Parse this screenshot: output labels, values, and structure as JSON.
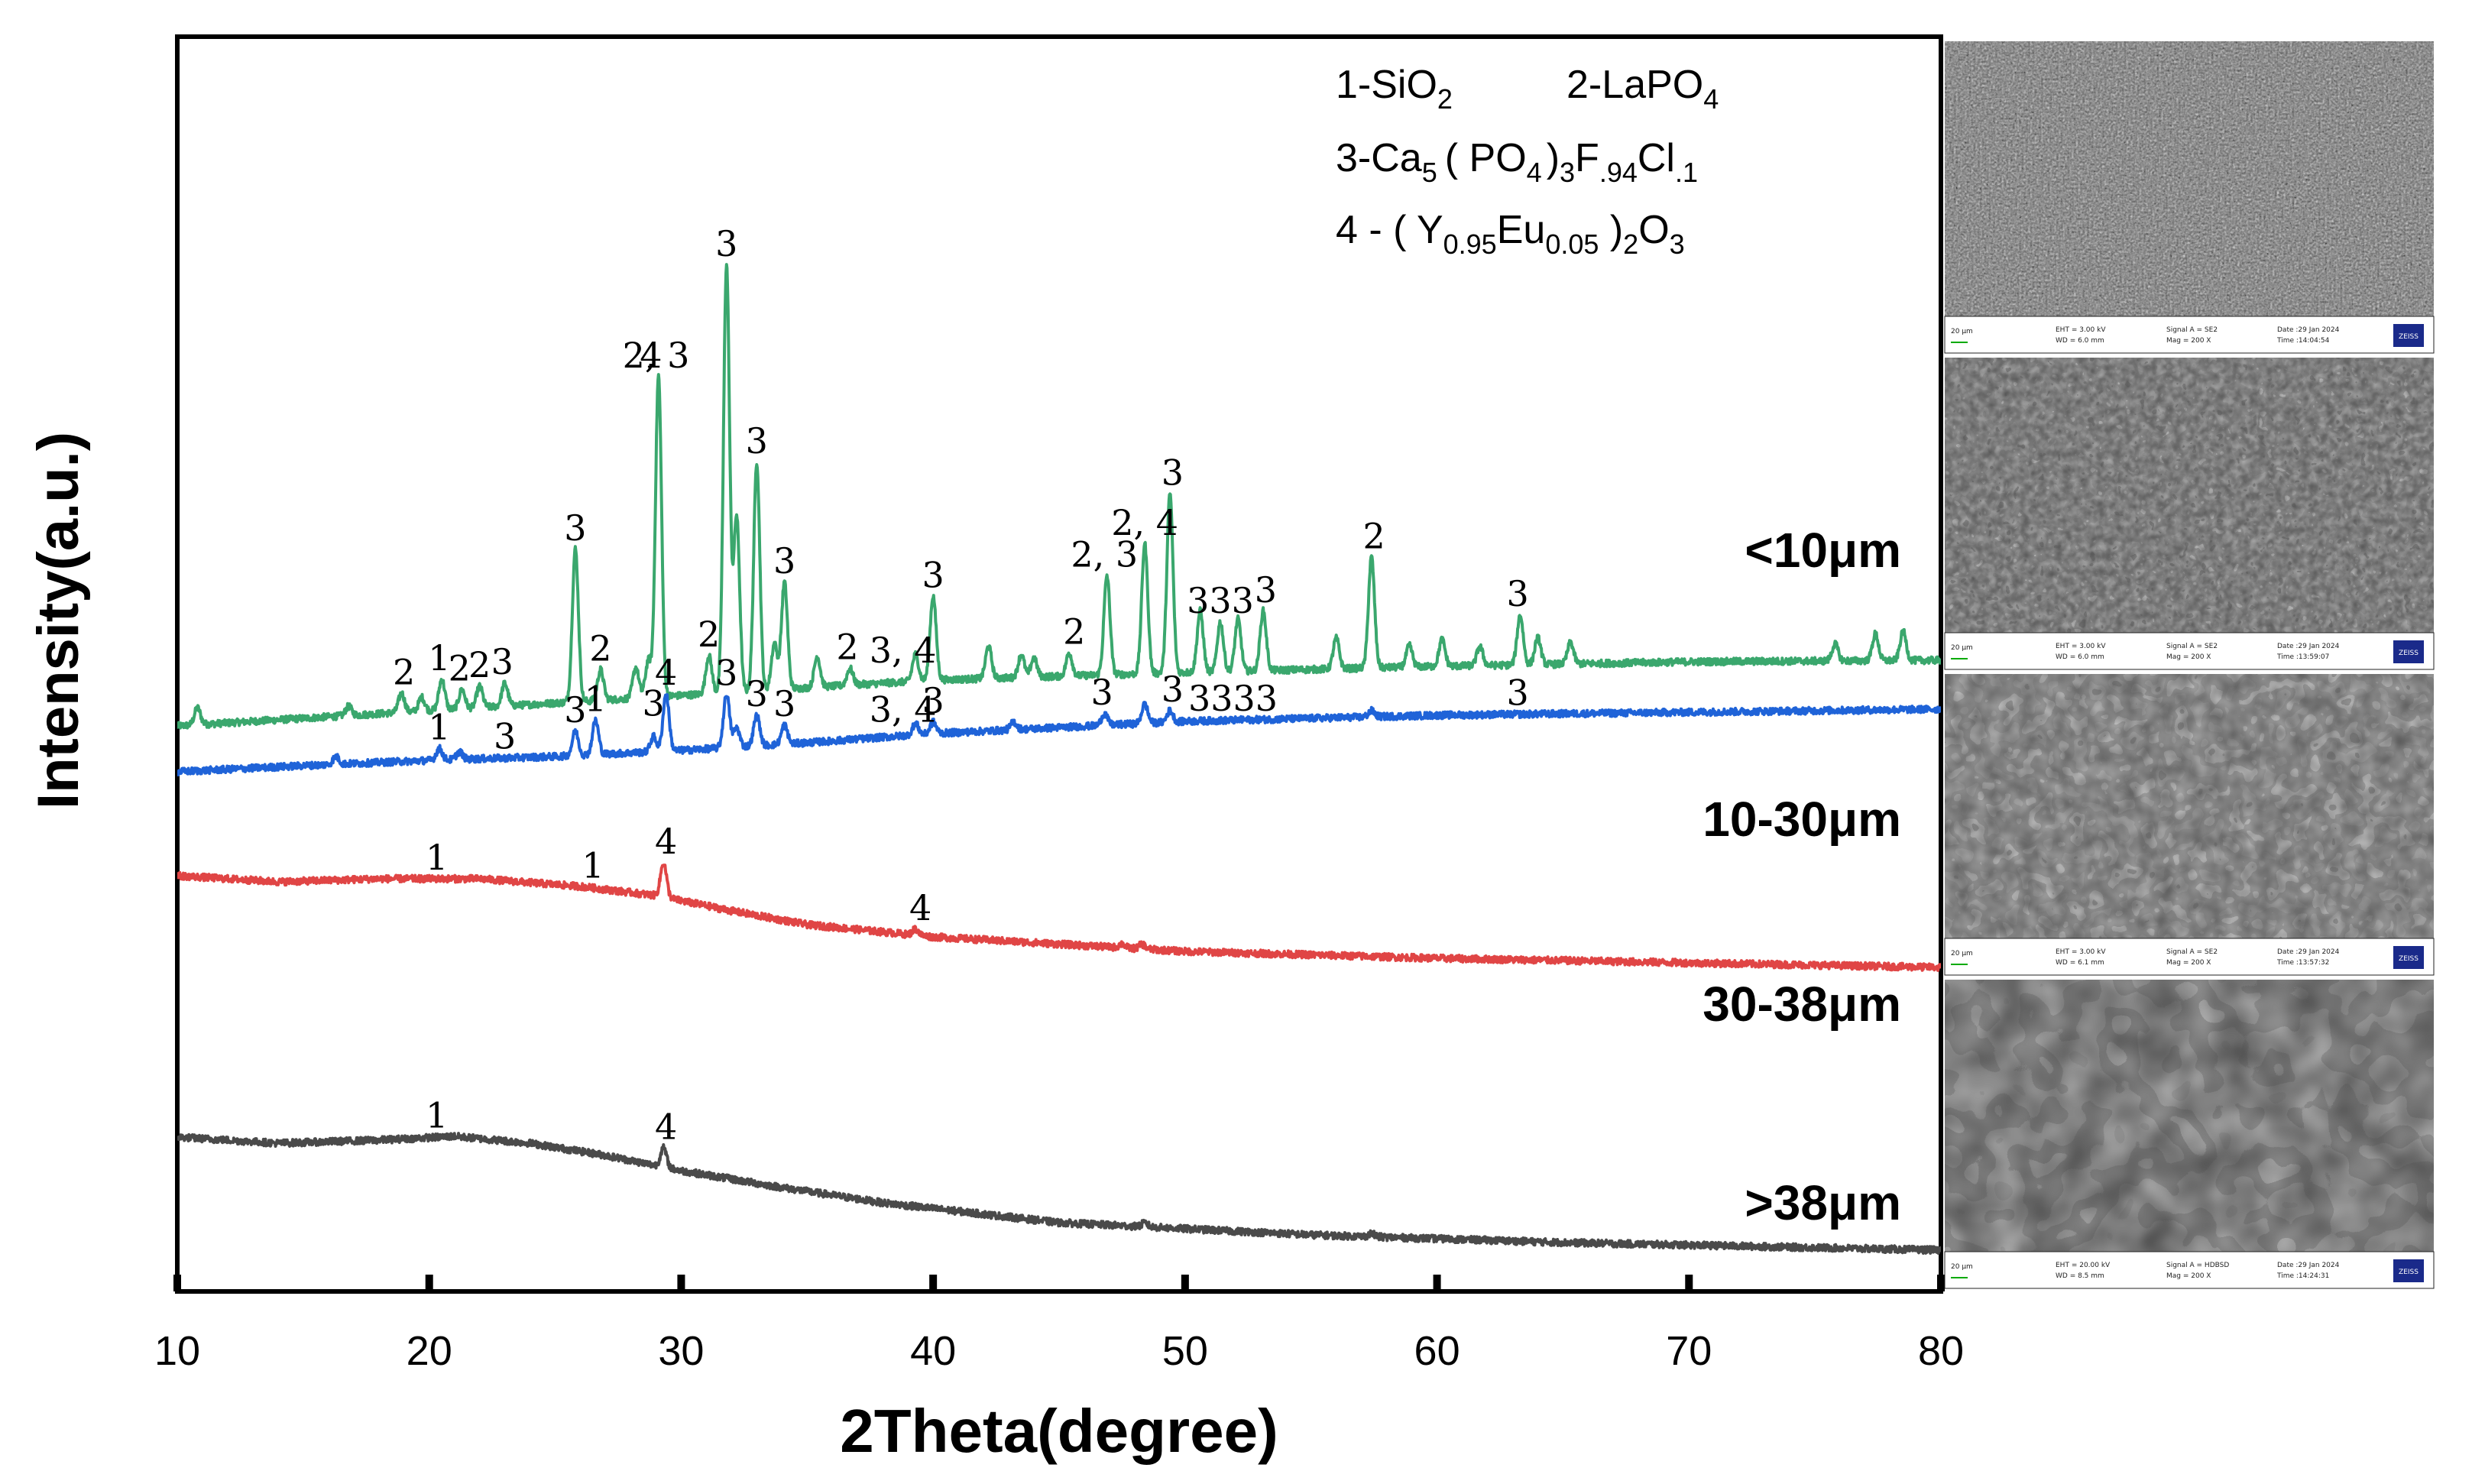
{
  "chart_data": {
    "type": "line",
    "xlabel": "2Theta(degree)",
    "ylabel": "Intensity(a.u.)",
    "xlim": [
      10,
      80
    ],
    "x_ticks": [
      "10",
      "20",
      "30",
      "40",
      "50",
      "60",
      "70",
      "80"
    ],
    "legend": [
      {
        "text": "1-SiO",
        "sub": "2"
      },
      {
        "text": "2-LaPO",
        "sub": "4"
      },
      {
        "text": "3-Ca",
        "sub": "5",
        "rest": "( PO",
        "sub2": "4",
        "rest2": ")",
        "sub3": "3",
        "rest3": "F",
        "sub4": ".94",
        "rest4": "Cl",
        "sub5": ".1"
      },
      {
        "text": "4 -  ( Y",
        "sub": "0.95",
        "rest": "Eu",
        "sub2": "0.05",
        "rest2": " )",
        "sub3": "2",
        "rest3": "O",
        "sub4": "3"
      }
    ],
    "series": [
      {
        "name": "<10μm",
        "color": "#3aa76d",
        "baseline": [
          [
            10,
            340
          ],
          [
            20,
            360
          ],
          [
            30,
            380
          ],
          [
            40,
            400
          ],
          [
            50,
            410
          ],
          [
            60,
            418
          ],
          [
            70,
            424
          ],
          [
            80,
            426
          ]
        ],
        "peaks": [
          [
            10.8,
            22
          ],
          [
            16.8,
            12
          ],
          [
            18.9,
            25
          ],
          [
            19.7,
            18
          ],
          [
            20.5,
            40
          ],
          [
            21.3,
            25
          ],
          [
            22.0,
            28
          ],
          [
            23.0,
            30
          ],
          [
            25.8,
            200
          ],
          [
            26.8,
            40
          ],
          [
            28.2,
            40
          ],
          [
            28.7,
            48
          ],
          [
            29.1,
            420
          ],
          [
            31.1,
            50
          ],
          [
            31.8,
            560
          ],
          [
            32.2,
            230
          ],
          [
            33.0,
            300
          ],
          [
            33.7,
            60
          ],
          [
            34.1,
            140
          ],
          [
            35.4,
            40
          ],
          [
            36.7,
            22
          ],
          [
            39.3,
            35
          ],
          [
            40.0,
            110
          ],
          [
            42.2,
            42
          ],
          [
            43.5,
            30
          ],
          [
            44.0,
            25
          ],
          [
            45.4,
            30
          ],
          [
            46.9,
            130
          ],
          [
            48.4,
            170
          ],
          [
            49.4,
            235
          ],
          [
            50.6,
            80
          ],
          [
            51.4,
            65
          ],
          [
            52.1,
            68
          ],
          [
            53.1,
            78
          ],
          [
            56.0,
            40
          ],
          [
            57.4,
            145
          ],
          [
            58.9,
            28
          ],
          [
            60.2,
            35
          ],
          [
            61.7,
            25
          ],
          [
            63.3,
            65
          ],
          [
            64.0,
            35
          ],
          [
            65.3,
            28
          ],
          [
            75.8,
            22
          ],
          [
            77.4,
            35
          ],
          [
            78.5,
            38
          ]
        ],
        "peak_labels": [
          {
            "x": 19.0,
            "text": "2"
          },
          {
            "x": 20.4,
            "text": "1"
          },
          {
            "x": 21.2,
            "text": "2"
          },
          {
            "x": 22.0,
            "text": "2"
          },
          {
            "x": 22.9,
            "text": "3"
          },
          {
            "x": 25.8,
            "text": "3"
          },
          {
            "x": 26.8,
            "text": "2"
          },
          {
            "x": 28.8,
            "text": "4"
          },
          {
            "x": 29.0,
            "text": "2, 3"
          },
          {
            "x": 31.1,
            "text": "2"
          },
          {
            "x": 31.8,
            "text": "3"
          },
          {
            "x": 33.0,
            "text": "3"
          },
          {
            "x": 34.1,
            "text": "3"
          },
          {
            "x": 36.6,
            "text": "2"
          },
          {
            "x": 38.8,
            "text": "3, 4"
          },
          {
            "x": 40.0,
            "text": "3"
          },
          {
            "x": 45.6,
            "text": "2"
          },
          {
            "x": 46.8,
            "text": "2, 3"
          },
          {
            "x": 48.4,
            "text": "2, 4"
          },
          {
            "x": 49.5,
            "text": "3"
          },
          {
            "x": 51.4,
            "text": "333"
          },
          {
            "x": 53.2,
            "text": "3"
          },
          {
            "x": 57.5,
            "text": "2"
          },
          {
            "x": 63.2,
            "text": "3"
          }
        ]
      },
      {
        "name": "10-30μm",
        "color": "#1f63d8",
        "baseline": [
          [
            10,
            230
          ],
          [
            15,
            238
          ],
          [
            20,
            245
          ],
          [
            25,
            250
          ],
          [
            30,
            258
          ],
          [
            35,
            268
          ],
          [
            40,
            280
          ],
          [
            50,
            296
          ],
          [
            60,
            304
          ],
          [
            70,
            308
          ],
          [
            80,
            312
          ]
        ],
        "peaks": [
          [
            16.3,
            10
          ],
          [
            20.4,
            15
          ],
          [
            21.2,
            10
          ],
          [
            25.8,
            32
          ],
          [
            26.6,
            45
          ],
          [
            28.9,
            20
          ],
          [
            29.4,
            75
          ],
          [
            31.8,
            70
          ],
          [
            32.2,
            25
          ],
          [
            33.0,
            40
          ],
          [
            34.1,
            25
          ],
          [
            39.3,
            15
          ],
          [
            40.0,
            15
          ],
          [
            43.2,
            10
          ],
          [
            46.8,
            15
          ],
          [
            48.4,
            25
          ],
          [
            49.4,
            15
          ],
          [
            57.4,
            8
          ]
        ],
        "peak_labels": [
          {
            "x": 20.4,
            "text": "1"
          },
          {
            "x": 23.0,
            "text": "3"
          },
          {
            "x": 25.8,
            "text": "3"
          },
          {
            "x": 26.6,
            "text": "1"
          },
          {
            "x": 28.9,
            "text": "3"
          },
          {
            "x": 29.4,
            "text": "4"
          },
          {
            "x": 31.8,
            "text": "3"
          },
          {
            "x": 33.0,
            "text": "3"
          },
          {
            "x": 34.1,
            "text": "3"
          },
          {
            "x": 38.8,
            "text": "3, 4"
          },
          {
            "x": 40.0,
            "text": "3"
          },
          {
            "x": 46.7,
            "text": "3"
          },
          {
            "x": 49.5,
            "text": "3"
          },
          {
            "x": 51.9,
            "text": "3333"
          },
          {
            "x": 63.2,
            "text": "3"
          }
        ]
      },
      {
        "name": "30-38μm",
        "color": "#e04545",
        "baseline": [
          [
            10,
            144
          ],
          [
            14,
            136
          ],
          [
            18,
            140
          ],
          [
            22,
            140
          ],
          [
            26,
            130
          ],
          [
            29,
            118
          ],
          [
            32,
            98
          ],
          [
            35,
            80
          ],
          [
            40,
            64
          ],
          [
            50,
            45
          ],
          [
            60,
            36
          ],
          [
            70,
            30
          ],
          [
            80,
            24
          ]
        ],
        "peaks": [
          [
            29.3,
            45
          ],
          [
            39.3,
            8
          ],
          [
            47.5,
            5
          ],
          [
            48.3,
            6
          ]
        ],
        "peak_labels": [
          {
            "x": 20.3,
            "text": "1"
          },
          {
            "x": 26.5,
            "text": "1"
          },
          {
            "x": 29.4,
            "text": "4"
          },
          {
            "x": 39.5,
            "text": "4"
          }
        ]
      },
      {
        "name": ">38μm",
        "color": "#4a4a4a",
        "baseline": [
          [
            10,
            172
          ],
          [
            14,
            164
          ],
          [
            18,
            168
          ],
          [
            21,
            173
          ],
          [
            24,
            164
          ],
          [
            27,
            148
          ],
          [
            30,
            128
          ],
          [
            34,
            106
          ],
          [
            38,
            86
          ],
          [
            45,
            60
          ],
          [
            55,
            44
          ],
          [
            65,
            34
          ],
          [
            80,
            24
          ]
        ],
        "peaks": [
          [
            29.3,
            25
          ],
          [
            48.4,
            5
          ],
          [
            57.4,
            4
          ]
        ],
        "peak_labels": [
          {
            "x": 20.3,
            "text": "1"
          },
          {
            "x": 29.4,
            "text": "4"
          }
        ]
      }
    ]
  },
  "sem_panels": [
    {
      "name": "sem-panel-1",
      "scale": "20 µm",
      "eht": "EHT =  3.00 kV",
      "wd": "WD =  6.0 mm",
      "signal": "Signal A = SE2",
      "mag": "Mag =   200 X",
      "date": "Date :29 Jan 2024",
      "time": "Time :14:04:54",
      "logo": "ZEISS"
    },
    {
      "name": "sem-panel-2",
      "scale": "20 µm",
      "eht": "EHT =  3.00 kV",
      "wd": "WD =  6.0 mm",
      "signal": "Signal A = SE2",
      "mag": "Mag =   200 X",
      "date": "Date :29 Jan 2024",
      "time": "Time :13:59:07",
      "logo": "ZEISS"
    },
    {
      "name": "sem-panel-3",
      "scale": "20 µm",
      "eht": "EHT =  3.00 kV",
      "wd": "WD =  6.1 mm",
      "signal": "Signal A = SE2",
      "mag": "Mag =   200 X",
      "date": "Date :29 Jan 2024",
      "time": "Time :13:57:32",
      "logo": "ZEISS"
    },
    {
      "name": "sem-panel-4",
      "scale": "20 µm",
      "eht": "EHT = 20.00 kV",
      "wd": "WD =  8.5 mm",
      "signal": "Signal A = HDBSD",
      "mag": "Mag =   200 X",
      "date": "Date :29 Jan 2024",
      "time": "Time :14:24:31",
      "logo": "ZEISS"
    }
  ]
}
